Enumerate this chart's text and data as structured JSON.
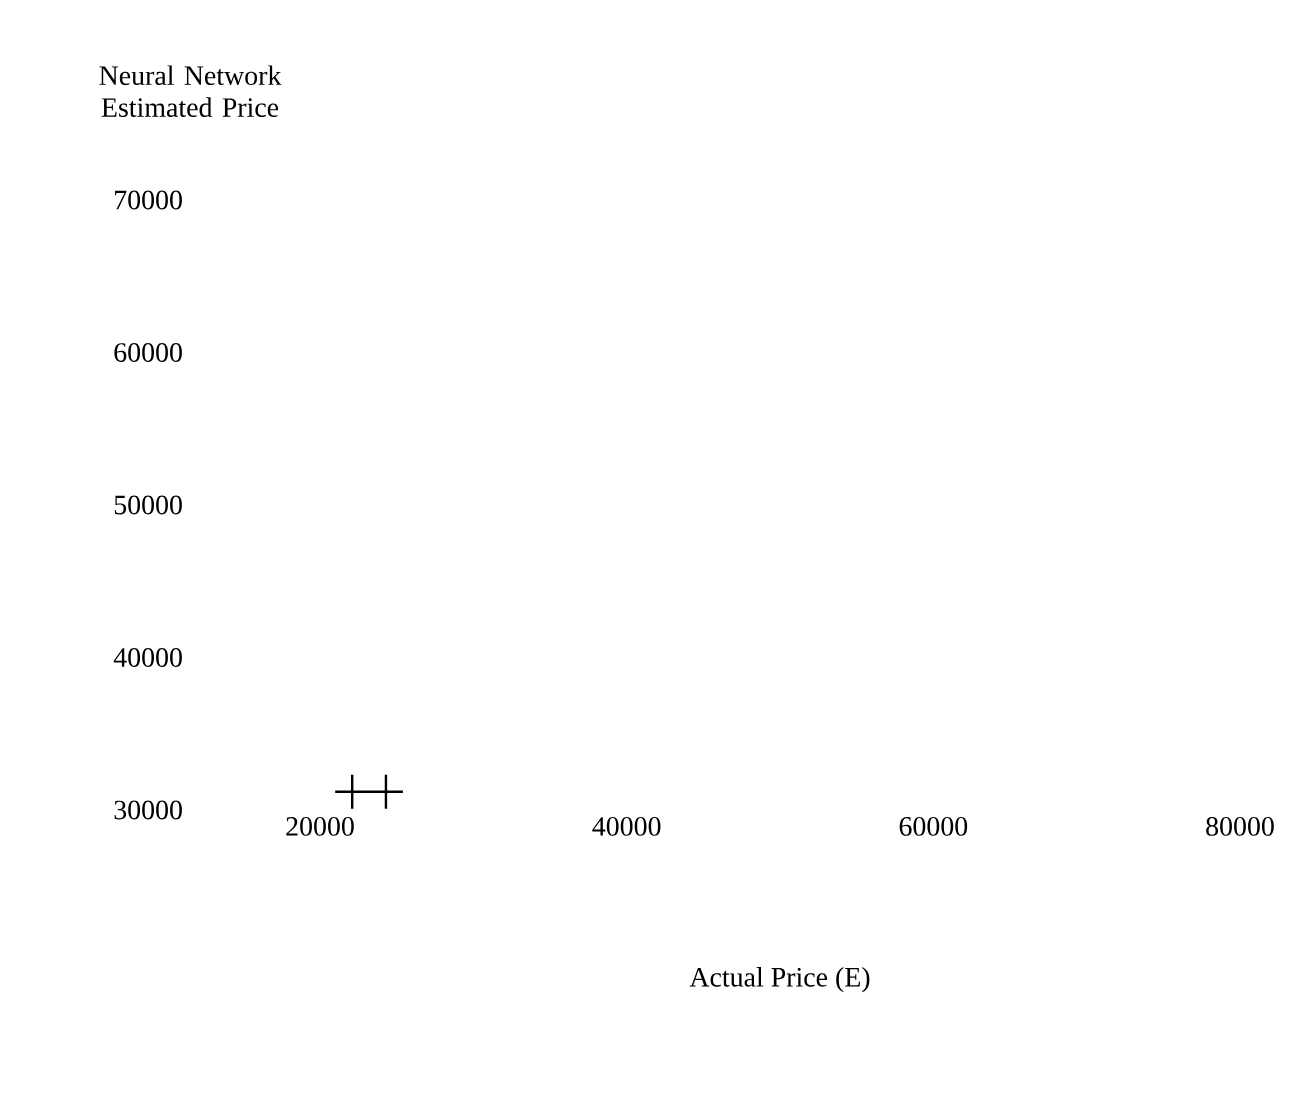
{
  "chart_data": {
    "type": "scatter",
    "xlabel": "Actual Price (E)",
    "ylabel": "Neural Network Estimated Price",
    "x": [
      22100,
      24300
    ],
    "values": [
      31200,
      31200
    ],
    "color": "#000000",
    "marker": "cross",
    "xlim": [
      20000,
      80000
    ],
    "ylim": [
      30000,
      70000
    ],
    "xticks": [
      20000,
      40000,
      60000,
      80000
    ],
    "yticks": [
      30000,
      40000,
      50000,
      60000,
      70000
    ]
  }
}
